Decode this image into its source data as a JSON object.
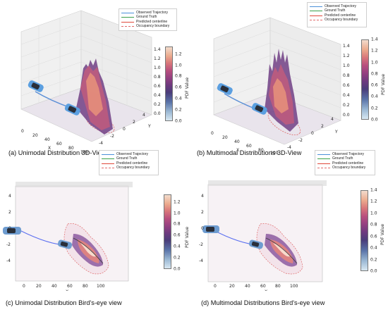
{
  "legend": {
    "items": [
      {
        "label": "Observed Trajectory",
        "color": "#4a90d9",
        "style": "solid"
      },
      {
        "label": "Ground Truth",
        "color": "#3aa04a",
        "style": "solid"
      },
      {
        "label": "Predicted centerline",
        "color": "#e0483a",
        "style": "solid"
      },
      {
        "label": "Occupancy boundary",
        "color": "#e06a6a",
        "style": "dashed"
      }
    ]
  },
  "colorbar": {
    "label": "PDF Value",
    "ticks_a": [
      "1.2",
      "1.0",
      "0.8",
      "0.6",
      "0.4",
      "0.2",
      "0.0"
    ],
    "ticks_b": [
      "1.4",
      "1.2",
      "1.0",
      "0.8",
      "0.6",
      "0.4",
      "0.2",
      "0.0"
    ]
  },
  "panels": {
    "a": {
      "caption": "(a) Unimodal Distribution 3D-View",
      "x_label": "X",
      "y_label": "Y",
      "x_ticks": [
        "0",
        "20",
        "40",
        "60",
        "80",
        "100"
      ],
      "y_ticks": [
        "4",
        "2",
        "0",
        "-2",
        "-4"
      ],
      "z_ticks": [
        "1.4",
        "1.2",
        "1.0",
        "0.8",
        "0.6",
        "0.4",
        "0.2",
        "0.0"
      ]
    },
    "b": {
      "caption": "(b) Multimodal Distributions 3D-View",
      "x_label": "X",
      "y_label": "Y",
      "x_ticks": [
        "0",
        "20",
        "40",
        "60",
        "80",
        "100"
      ],
      "y_ticks": [
        "4",
        "2",
        "0",
        "-2",
        "-4"
      ],
      "z_ticks": [
        "1.4",
        "1.2",
        "1.0",
        "0.8",
        "0.6",
        "0.4",
        "0.2",
        "0.0"
      ]
    },
    "c": {
      "caption": "(c) Unimodal Distribution Bird's-eye view",
      "x_label": "X",
      "x_ticks": [
        "0",
        "20",
        "40",
        "60",
        "80",
        "100"
      ],
      "y_ticks": [
        "4",
        "2",
        "0",
        "-2",
        "-4"
      ]
    },
    "d": {
      "caption": "(d) Multimodal Distributions Bird's-eye view",
      "x_label": "X",
      "x_ticks": [
        "0",
        "20",
        "40",
        "60",
        "80",
        "100"
      ],
      "y_ticks": [
        "4",
        "2",
        "0",
        "-2",
        "-4"
      ]
    }
  }
}
